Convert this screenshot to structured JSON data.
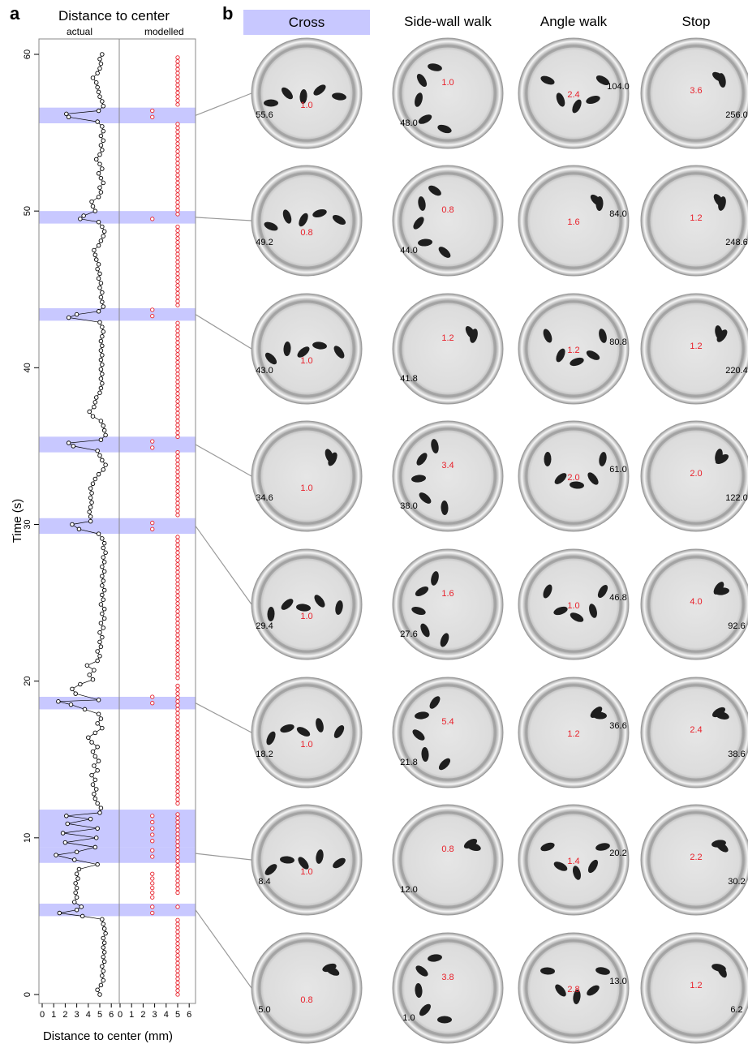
{
  "panel_a": {
    "letter": "a",
    "title": "Distance to center",
    "subtitles": [
      "actual",
      "modelled"
    ],
    "xlabel": "Distance to center (mm)",
    "ylabel": "Time (s)"
  },
  "panel_b": {
    "letter": "b",
    "columns": [
      "Cross",
      "Side-wall walk",
      "Angle walk",
      "Stop"
    ],
    "highlighted_column": "Cross",
    "rows": [
      [
        {
          "black": "55.6",
          "red": "1.0"
        },
        {
          "black": "48.0",
          "red": "1.0"
        },
        {
          "black": "104.0",
          "red": "2.4"
        },
        {
          "black": "256.0",
          "red": "3.6"
        }
      ],
      [
        {
          "black": "49.2",
          "red": "0.8"
        },
        {
          "black": "44.0",
          "red": "0.8"
        },
        {
          "black": "84.0",
          "red": "1.6"
        },
        {
          "black": "248.6",
          "red": "1.2"
        }
      ],
      [
        {
          "black": "43.0",
          "red": "1.0"
        },
        {
          "black": "41.8",
          "red": "1.2"
        },
        {
          "black": "80.8",
          "red": "1.2"
        },
        {
          "black": "220.4",
          "red": "1.2"
        }
      ],
      [
        {
          "black": "34.6",
          "red": "1.0"
        },
        {
          "black": "38.0",
          "red": "3.4"
        },
        {
          "black": "61.0",
          "red": "2.0"
        },
        {
          "black": "122.0",
          "red": "2.0"
        }
      ],
      [
        {
          "black": "29.4",
          "red": "1.0"
        },
        {
          "black": "27.6",
          "red": "1.6"
        },
        {
          "black": "46.8",
          "red": "1.0"
        },
        {
          "black": "92.6",
          "red": "4.0"
        }
      ],
      [
        {
          "black": "18.2",
          "red": "1.0"
        },
        {
          "black": "21.8",
          "red": "5.4"
        },
        {
          "black": "36.6",
          "red": "1.2"
        },
        {
          "black": "38.6",
          "red": "2.4"
        }
      ],
      [
        {
          "black": "8.4",
          "red": "1.0"
        },
        {
          "black": "12.0",
          "red": "0.8"
        },
        {
          "black": "20.2",
          "red": "1.4"
        },
        {
          "black": "30.2",
          "red": "2.2"
        }
      ],
      [
        {
          "black": "5.0",
          "red": "0.8"
        },
        {
          "black": "1.0",
          "red": "3.8"
        },
        {
          "black": "13.0",
          "red": "2.8"
        },
        {
          "black": "6.2",
          "red": "1.2"
        }
      ]
    ]
  },
  "colors": {
    "actual": "#000000",
    "modelled": "#e8202a",
    "highlight": "#c8c8ff",
    "connector": "#9a9a9a"
  },
  "chart_data": {
    "type": "scatter",
    "title": "Distance to center",
    "xlabel": "Distance to center (mm)",
    "ylabel": "Time (s)",
    "ylim": [
      0,
      60
    ],
    "yticks": [
      0,
      10,
      20,
      30,
      40,
      50,
      60
    ],
    "xticks": [
      0,
      1,
      2,
      3,
      4,
      5,
      6
    ],
    "panels": [
      "actual",
      "modelled"
    ],
    "highlight_bands": [
      [
        55.6,
        56.6
      ],
      [
        49.2,
        50.0
      ],
      [
        43.0,
        43.8
      ],
      [
        34.6,
        35.6
      ],
      [
        29.4,
        30.4
      ],
      [
        18.2,
        19.0
      ],
      [
        8.4,
        9.4
      ],
      [
        9.4,
        11.8
      ],
      [
        5.0,
        5.8
      ]
    ],
    "series": [
      {
        "panel": "actual",
        "points": [
          [
            5.0,
            0.0
          ],
          [
            4.8,
            0.3
          ],
          [
            5.1,
            0.6
          ],
          [
            5.3,
            0.9
          ],
          [
            5.2,
            1.2
          ],
          [
            5.3,
            1.5
          ],
          [
            5.2,
            1.8
          ],
          [
            5.4,
            2.1
          ],
          [
            5.3,
            2.4
          ],
          [
            5.4,
            2.7
          ],
          [
            5.3,
            3.0
          ],
          [
            5.4,
            3.3
          ],
          [
            5.3,
            3.6
          ],
          [
            5.5,
            3.9
          ],
          [
            5.4,
            4.2
          ],
          [
            5.3,
            4.5
          ],
          [
            5.2,
            4.8
          ],
          [
            3.5,
            5.0
          ],
          [
            1.5,
            5.2
          ],
          [
            3.0,
            5.4
          ],
          [
            3.4,
            5.6
          ],
          [
            2.8,
            5.9
          ],
          [
            3.0,
            6.2
          ],
          [
            2.9,
            6.5
          ],
          [
            3.0,
            6.8
          ],
          [
            2.9,
            7.1
          ],
          [
            3.1,
            7.4
          ],
          [
            3.0,
            7.7
          ],
          [
            3.2,
            8.0
          ],
          [
            4.8,
            8.3
          ],
          [
            2.8,
            8.6
          ],
          [
            1.2,
            8.9
          ],
          [
            3.0,
            9.1
          ],
          [
            4.6,
            9.4
          ],
          [
            2.0,
            9.7
          ],
          [
            4.7,
            10.0
          ],
          [
            1.8,
            10.3
          ],
          [
            4.8,
            10.6
          ],
          [
            2.2,
            10.9
          ],
          [
            4.2,
            11.2
          ],
          [
            2.1,
            11.4
          ],
          [
            5.0,
            11.6
          ],
          [
            5.1,
            11.9
          ],
          [
            4.8,
            12.2
          ],
          [
            4.6,
            12.5
          ],
          [
            4.5,
            12.8
          ],
          [
            4.7,
            13.1
          ],
          [
            4.4,
            13.4
          ],
          [
            4.6,
            13.7
          ],
          [
            4.3,
            14.0
          ],
          [
            4.8,
            14.3
          ],
          [
            4.5,
            14.6
          ],
          [
            4.9,
            14.9
          ],
          [
            4.6,
            15.2
          ],
          [
            4.4,
            15.5
          ],
          [
            4.8,
            15.8
          ],
          [
            4.3,
            16.1
          ],
          [
            4.0,
            16.4
          ],
          [
            4.6,
            16.7
          ],
          [
            5.2,
            17.0
          ],
          [
            4.8,
            17.3
          ],
          [
            5.1,
            17.6
          ],
          [
            4.9,
            17.9
          ],
          [
            3.7,
            18.2
          ],
          [
            2.5,
            18.5
          ],
          [
            1.4,
            18.7
          ],
          [
            4.9,
            18.8
          ],
          [
            2.9,
            19.2
          ],
          [
            2.6,
            19.5
          ],
          [
            3.3,
            19.8
          ],
          [
            4.4,
            20.1
          ],
          [
            4.1,
            20.4
          ],
          [
            4.5,
            20.7
          ],
          [
            3.9,
            21.0
          ],
          [
            4.8,
            21.3
          ],
          [
            5.0,
            21.6
          ],
          [
            4.8,
            21.9
          ],
          [
            5.1,
            22.2
          ],
          [
            5.0,
            22.5
          ],
          [
            5.2,
            22.8
          ],
          [
            5.0,
            23.1
          ],
          [
            5.3,
            23.4
          ],
          [
            5.1,
            23.7
          ],
          [
            5.4,
            24.0
          ],
          [
            5.2,
            24.3
          ],
          [
            5.4,
            24.6
          ],
          [
            5.1,
            24.9
          ],
          [
            5.3,
            25.2
          ],
          [
            5.2,
            25.5
          ],
          [
            5.4,
            25.8
          ],
          [
            5.2,
            26.1
          ],
          [
            5.3,
            26.4
          ],
          [
            5.2,
            26.7
          ],
          [
            5.4,
            27.0
          ],
          [
            5.2,
            27.3
          ],
          [
            5.4,
            27.6
          ],
          [
            5.3,
            27.9
          ],
          [
            5.5,
            28.2
          ],
          [
            5.3,
            28.5
          ],
          [
            5.4,
            28.8
          ],
          [
            5.2,
            29.1
          ],
          [
            4.9,
            29.4
          ],
          [
            3.2,
            29.7
          ],
          [
            2.6,
            30.0
          ],
          [
            4.2,
            30.2
          ],
          [
            4.2,
            30.5
          ],
          [
            4.1,
            30.8
          ],
          [
            4.2,
            31.1
          ],
          [
            4.3,
            31.4
          ],
          [
            4.2,
            31.7
          ],
          [
            4.3,
            32.0
          ],
          [
            4.2,
            32.3
          ],
          [
            4.4,
            32.6
          ],
          [
            4.6,
            32.9
          ],
          [
            4.9,
            33.2
          ],
          [
            5.3,
            33.5
          ],
          [
            5.5,
            33.8
          ],
          [
            5.2,
            34.1
          ],
          [
            5.0,
            34.4
          ],
          [
            4.8,
            34.7
          ],
          [
            2.7,
            35.0
          ],
          [
            2.3,
            35.2
          ],
          [
            5.1,
            35.4
          ],
          [
            5.5,
            35.7
          ],
          [
            5.4,
            36.0
          ],
          [
            5.3,
            36.3
          ],
          [
            5.1,
            36.6
          ],
          [
            4.4,
            36.9
          ],
          [
            4.1,
            37.2
          ],
          [
            4.5,
            37.5
          ],
          [
            4.6,
            37.8
          ],
          [
            4.7,
            38.1
          ],
          [
            5.0,
            38.4
          ],
          [
            5.1,
            38.7
          ],
          [
            5.2,
            39.0
          ],
          [
            5.1,
            39.3
          ],
          [
            5.2,
            39.6
          ],
          [
            5.1,
            39.9
          ],
          [
            5.2,
            40.2
          ],
          [
            5.1,
            40.5
          ],
          [
            5.2,
            40.8
          ],
          [
            5.1,
            41.1
          ],
          [
            5.2,
            41.4
          ],
          [
            5.1,
            41.7
          ],
          [
            5.2,
            42.0
          ],
          [
            5.3,
            42.3
          ],
          [
            5.2,
            42.6
          ],
          [
            5.0,
            42.9
          ],
          [
            2.3,
            43.2
          ],
          [
            3.0,
            43.4
          ],
          [
            4.9,
            43.6
          ],
          [
            5.3,
            43.9
          ],
          [
            5.2,
            44.2
          ],
          [
            5.1,
            44.5
          ],
          [
            5.2,
            44.8
          ],
          [
            5.0,
            45.1
          ],
          [
            5.1,
            45.4
          ],
          [
            4.9,
            45.7
          ],
          [
            5.0,
            46.0
          ],
          [
            4.8,
            46.3
          ],
          [
            4.9,
            46.6
          ],
          [
            4.7,
            46.9
          ],
          [
            4.6,
            47.2
          ],
          [
            4.5,
            47.5
          ],
          [
            4.9,
            47.8
          ],
          [
            5.1,
            48.1
          ],
          [
            5.3,
            48.4
          ],
          [
            5.4,
            48.7
          ],
          [
            5.2,
            49.0
          ],
          [
            4.9,
            49.3
          ],
          [
            3.3,
            49.5
          ],
          [
            3.6,
            49.7
          ],
          [
            4.6,
            50.0
          ],
          [
            4.4,
            50.3
          ],
          [
            4.3,
            50.6
          ],
          [
            4.9,
            50.9
          ],
          [
            5.1,
            51.2
          ],
          [
            5.0,
            51.5
          ],
          [
            5.3,
            51.8
          ],
          [
            5.1,
            52.1
          ],
          [
            4.9,
            52.4
          ],
          [
            5.2,
            52.7
          ],
          [
            5.0,
            53.0
          ],
          [
            4.7,
            53.3
          ],
          [
            5.0,
            53.6
          ],
          [
            5.2,
            53.9
          ],
          [
            5.1,
            54.2
          ],
          [
            5.3,
            54.5
          ],
          [
            5.1,
            54.8
          ],
          [
            5.3,
            55.1
          ],
          [
            5.2,
            55.4
          ],
          [
            4.8,
            55.7
          ],
          [
            2.3,
            56.0
          ],
          [
            2.1,
            56.2
          ],
          [
            4.9,
            56.4
          ],
          [
            5.3,
            56.7
          ],
          [
            5.2,
            57.0
          ],
          [
            5.0,
            57.3
          ],
          [
            4.9,
            57.6
          ],
          [
            4.8,
            57.9
          ],
          [
            4.7,
            58.2
          ],
          [
            4.4,
            58.5
          ],
          [
            4.8,
            58.8
          ],
          [
            5.0,
            59.1
          ],
          [
            5.1,
            59.4
          ],
          [
            5.0,
            59.7
          ],
          [
            5.2,
            60.0
          ]
        ]
      },
      {
        "panel": "modelled",
        "xs": [
          2.8,
          5.0
        ],
        "points_at_2.8": [
          5.2,
          5.6,
          6.2,
          6.5,
          6.8,
          7.1,
          7.4,
          7.7,
          8.8,
          9.2,
          9.8,
          10.2,
          10.6,
          11.0,
          11.4,
          18.6,
          19.0,
          29.7,
          30.1,
          34.9,
          35.3,
          43.3,
          43.7,
          49.5,
          56.0,
          56.4
        ],
        "points_at_5.0_ranges": [
          [
            0.0,
            4.8
          ],
          [
            5.6,
            5.8
          ],
          [
            6.5,
            11.6
          ],
          [
            12.2,
            19.8
          ],
          [
            20.2,
            29.2
          ],
          [
            30.6,
            34.6
          ],
          [
            35.6,
            42.9
          ],
          [
            44.0,
            49.2
          ],
          [
            49.8,
            55.6
          ],
          [
            56.8,
            60.0
          ]
        ]
      }
    ]
  }
}
